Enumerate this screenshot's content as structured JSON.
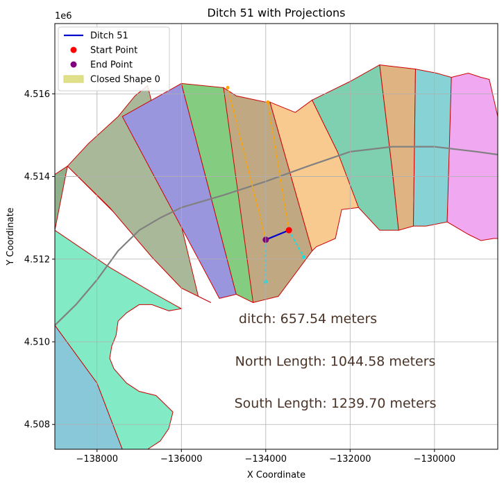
{
  "chart_data": {
    "type": "line",
    "title": "Ditch 51 with Projections",
    "xlabel": "X Coordinate",
    "ylabel": "Y Coordinate",
    "y_offset_label": "1e6",
    "xlim": [
      -139000,
      -128500
    ],
    "ylim": [
      4507400,
      4517700
    ],
    "x_ticks": [
      -138000,
      -136000,
      -134000,
      -132000,
      -130000
    ],
    "x_tick_labels": [
      "−138000",
      "−136000",
      "−134000",
      "−132000",
      "−130000"
    ],
    "y_ticks": [
      4508000,
      4510000,
      4512000,
      4514000,
      4516000
    ],
    "y_tick_labels": [
      "4.508",
      "4.510",
      "4.512",
      "4.514",
      "4.516"
    ],
    "grid": true,
    "legend_position": "top-left",
    "legend": [
      {
        "label": "Ditch 51",
        "kind": "line",
        "color": "#0000cc"
      },
      {
        "label": "Start Point",
        "kind": "dot",
        "color": "#ff0000"
      },
      {
        "label": "End Point",
        "kind": "dot",
        "color": "#800080"
      },
      {
        "label": "Closed Shape 0",
        "kind": "patch",
        "color": "#e0e08a"
      }
    ],
    "annotations": [
      {
        "text": "ditch: 657.54 meters",
        "x": -133000,
        "y": 4510450
      },
      {
        "text": "North Length: 1044.58 meters",
        "x": -132350,
        "y": 4509420
      },
      {
        "text": "South Length: 1239.70 meters",
        "x": -132350,
        "y": 4508410
      }
    ],
    "colors": {
      "ditch": "#0000cc",
      "start": "#ff0000",
      "end": "#800080",
      "north_projection": "#ffa500",
      "south_projection": "#00e5ee",
      "centerline": "#808080",
      "shape_edge": "#cc0000"
    },
    "ditch": {
      "x": [
        -134000,
        -133450
      ],
      "y": [
        4512470,
        4512700
      ]
    },
    "start_point": {
      "x": -133450,
      "y": 4512700
    },
    "end_point": {
      "x": -134000,
      "y": 4512470
    },
    "north_projections": [
      {
        "x": [
          -134000,
          -134900
        ],
        "y": [
          4512470,
          4516150
        ]
      },
      {
        "x": [
          -133450,
          -133950
        ],
        "y": [
          4512700,
          4515800
        ]
      }
    ],
    "south_projections": [
      {
        "x": [
          -134000,
          -134000
        ],
        "y": [
          4512470,
          4511450
        ]
      },
      {
        "x": [
          -133450,
          -133100
        ],
        "y": [
          4512700,
          4512050
        ]
      }
    ],
    "centerline": {
      "x": [
        -139000,
        -138500,
        -138000,
        -137500,
        -137000,
        -136500,
        -136000,
        -135000,
        -134000,
        -133000,
        -132000,
        -131000,
        -130000,
        -129000,
        -128500
      ],
      "y": [
        4510400,
        4510900,
        4511500,
        4512200,
        4512700,
        4513000,
        4513250,
        4513550,
        4513880,
        4514250,
        4514600,
        4514720,
        4514720,
        4514600,
        4514530
      ]
    },
    "shapes": [
      {
        "color": "#88c8d8",
        "x": [
          -139000,
          -139000,
          -138000,
          -137400,
          -139000
        ],
        "y": [
          4507400,
          4510400,
          4509000,
          4507400,
          4507400
        ]
      },
      {
        "color": "#82eac4",
        "x": [
          -139000,
          -139000,
          -137700,
          -136700,
          -136000,
          -136300,
          -136700,
          -137000,
          -137300,
          -137500,
          -137550,
          -137650,
          -137700,
          -137600,
          -137300,
          -137000,
          -136600,
          -136400,
          -136200,
          -136300,
          -136500,
          -136800,
          -137000,
          -137400,
          -138000,
          -139000
        ],
        "y": [
          4510400,
          4512700,
          4511800,
          4511200,
          4510800,
          4510750,
          4510900,
          4510900,
          4510700,
          4510500,
          4510150,
          4509900,
          4509600,
          4509350,
          4509000,
          4508800,
          4508700,
          4508500,
          4508300,
          4507900,
          4507600,
          4507400,
          4507400,
          4507400,
          4509000,
          4510400
        ]
      },
      {
        "color": "#8fb08a",
        "x": [
          -139000,
          -139000,
          -138700,
          -137700,
          -136700,
          -136000,
          -135300,
          -135600,
          -138700,
          -139000
        ],
        "y": [
          4512700,
          4514050,
          4514250,
          4513250,
          4512050,
          4511300,
          4510950,
          4511100,
          4514250,
          4512700
        ]
      },
      {
        "color": "#a8b898",
        "x": [
          -138700,
          -138200,
          -137500,
          -137100,
          -136800,
          -135600,
          -135300,
          -136000,
          -136700,
          -137700,
          -138700
        ],
        "y": [
          4514250,
          4514800,
          4515450,
          4515950,
          4516200,
          4511100,
          4510950,
          4511300,
          4512050,
          4513250,
          4514250
        ]
      },
      {
        "color": "#9a96de",
        "x": [
          -137400,
          -136000,
          -134700,
          -135100,
          -137400
        ],
        "y": [
          4515450,
          4516250,
          4511150,
          4511050,
          4515450
        ]
      },
      {
        "color": "#84cc80",
        "x": [
          -136000,
          -135000,
          -133900,
          -134300,
          -134700,
          -136000
        ],
        "y": [
          4516250,
          4516150,
          4511100,
          4510950,
          4511150,
          4516250
        ]
      },
      {
        "color": "#bfa882",
        "x": [
          -135000,
          -134700,
          -134000,
          -133900,
          -132900,
          -133700,
          -134300,
          -135000
        ],
        "y": [
          4516150,
          4515950,
          4515800,
          4515800,
          4512200,
          4511100,
          4510950,
          4516150
        ]
      },
      {
        "color": "#f8ca90",
        "x": [
          -133900,
          -133300,
          -132900,
          -132300,
          -131800,
          -131800,
          -132200,
          -132350,
          -132800,
          -132900,
          -133900
        ],
        "y": [
          4515800,
          4515550,
          4515850,
          4514600,
          4513700,
          4513250,
          4513200,
          4512500,
          4512300,
          4512200,
          4515800
        ]
      },
      {
        "color": "#7ed0b0",
        "x": [
          -132900,
          -132000,
          -131300,
          -131000,
          -130850,
          -131300,
          -131800,
          -132300,
          -132900
        ],
        "y": [
          4515850,
          4516300,
          4516700,
          4514150,
          4512700,
          4512700,
          4513250,
          4514600,
          4515850
        ]
      },
      {
        "color": "#dfb482",
        "x": [
          -131300,
          -130450,
          -130500,
          -130850,
          -131000,
          -131300
        ],
        "y": [
          4516700,
          4516600,
          4512800,
          4512700,
          4514150,
          4516700
        ]
      },
      {
        "color": "#86d2d4",
        "x": [
          -130450,
          -129950,
          -129600,
          -129600,
          -129700,
          -130200,
          -130500,
          -130450
        ],
        "y": [
          4516600,
          4516500,
          4516400,
          4515500,
          4512900,
          4512800,
          4512800,
          4516600
        ]
      },
      {
        "color": "#f0a8f0",
        "x": [
          -129600,
          -129200,
          -128900,
          -128700,
          -128600,
          -128500,
          -128500,
          -128600,
          -128900,
          -129200,
          -129700,
          -129600
        ],
        "y": [
          4516400,
          4516500,
          4516400,
          4516350,
          4515900,
          4515450,
          4512500,
          4512500,
          4512450,
          4512600,
          4512900,
          4516400
        ]
      },
      {
        "color": "#a0e8c8",
        "x": [
          -128500,
          -128500,
          -128400,
          -128500
        ],
        "y": [
          4515450,
          4512500,
          4512500,
          4515450
        ]
      }
    ]
  }
}
